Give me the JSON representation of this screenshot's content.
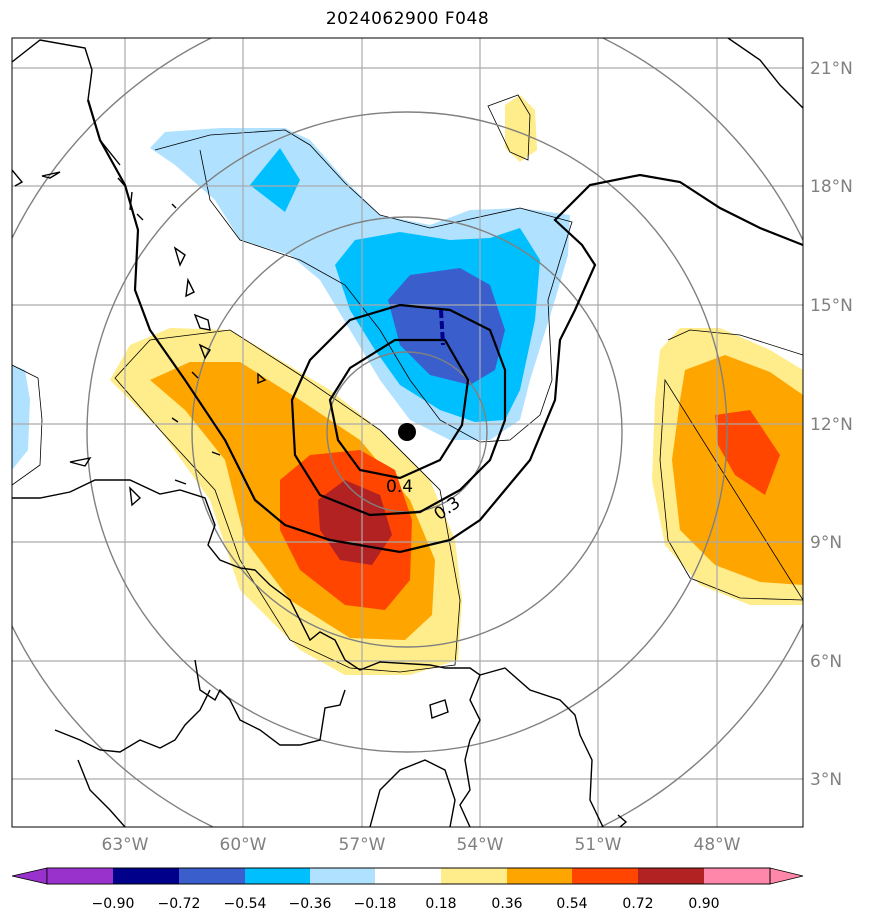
{
  "title": "2024062900 F048",
  "lat_labels": [
    "21°N",
    "18°N",
    "15°N",
    "12°N",
    "9°N",
    "6°N",
    "3°N"
  ],
  "lon_labels": [
    "63°W",
    "60°W",
    "57°W",
    "54°W",
    "51°W",
    "48°W"
  ],
  "contour_labels": [
    "0.4",
    "0.3"
  ],
  "colorbar": {
    "tick_labels": [
      "−0.90",
      "−0.72",
      "−0.54",
      "−0.36",
      "−0.18",
      "0.18",
      "0.36",
      "0.54",
      "0.72",
      "0.90"
    ],
    "colors": [
      "#9932cc",
      "#00008b",
      "#3a5fcd",
      "#00bfff",
      "#b0e2ff",
      "#ffffff",
      "#ffec8b",
      "#ffa500",
      "#ff4500",
      "#b22222",
      "#ff88aa"
    ]
  },
  "colors": {
    "grid": "#aaaaaa",
    "range_rings": "#808080",
    "coast": "#000000"
  },
  "center_marker": "storm-center"
}
